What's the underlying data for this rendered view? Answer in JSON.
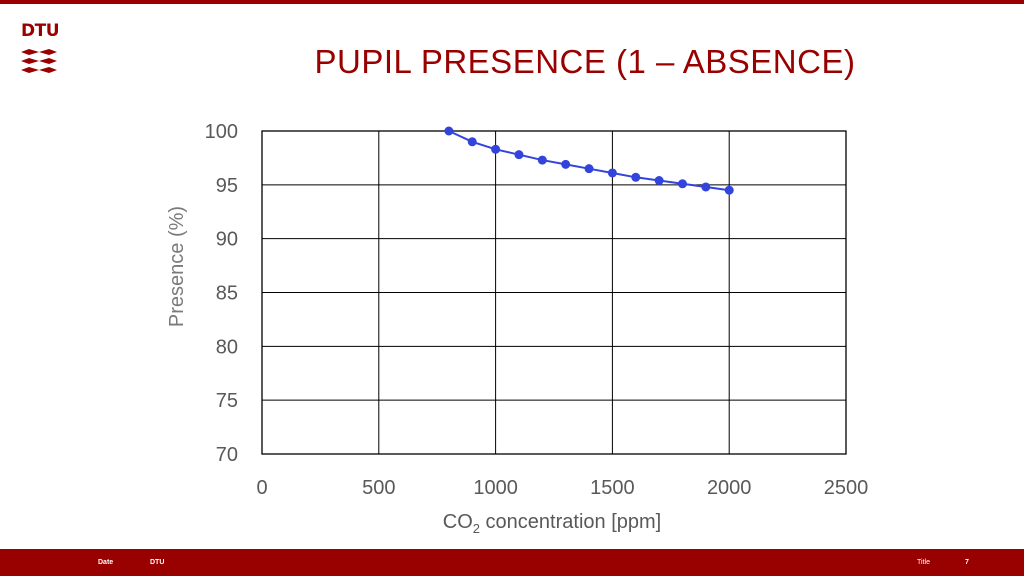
{
  "brand": {
    "logo_text": "DTU",
    "color": "#990000"
  },
  "slide": {
    "title": "PUPIL PRESENCE (1 – ABSENCE)"
  },
  "footer": {
    "date_label": "Date",
    "org_label": "DTU",
    "title_label": "Title",
    "page_number": "7"
  },
  "chart_data": {
    "type": "line",
    "title": "",
    "xlabel_main": "CO",
    "xlabel_sub": "2",
    "xlabel_rest": " concentration [ppm]",
    "ylabel": "Presence (%)",
    "xlim": [
      0,
      2500
    ],
    "ylim": [
      70,
      100
    ],
    "x_ticks": [
      0,
      500,
      1000,
      1500,
      2000,
      2500
    ],
    "y_ticks": [
      70,
      75,
      80,
      85,
      90,
      95,
      100
    ],
    "grid": true,
    "series": [
      {
        "name": "Presence",
        "color": "#3344dd",
        "x": [
          800,
          900,
          1000,
          1100,
          1200,
          1300,
          1400,
          1500,
          1600,
          1700,
          1800,
          1900,
          2000
        ],
        "y": [
          100.0,
          99.0,
          98.3,
          97.8,
          97.3,
          96.9,
          96.5,
          96.1,
          95.7,
          95.4,
          95.1,
          94.8,
          94.5
        ]
      }
    ]
  }
}
